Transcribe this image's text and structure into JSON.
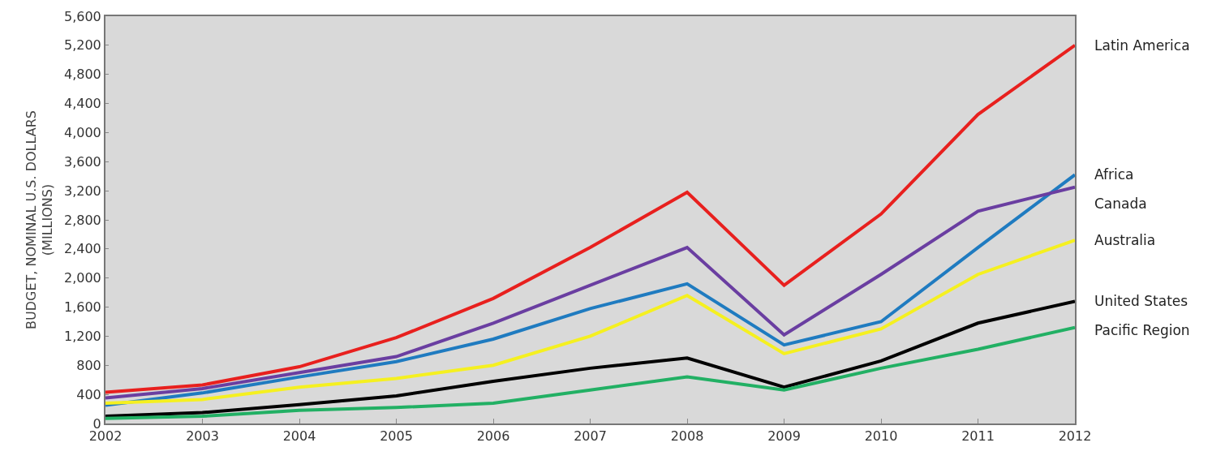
{
  "chart_data": {
    "type": "line",
    "ylabel": "BUDGET, NOMINAL U.S. DOLLARS\n(MILLIONS)",
    "x": [
      2002,
      2003,
      2004,
      2005,
      2006,
      2007,
      2008,
      2009,
      2010,
      2011,
      2012
    ],
    "xlim": [
      2002,
      2012
    ],
    "xticks": [
      2002,
      2003,
      2004,
      2005,
      2006,
      2007,
      2008,
      2009,
      2010,
      2011,
      2012
    ],
    "ylim": [
      0,
      5600
    ],
    "yticks": [
      {
        "value": 0,
        "label": "0"
      },
      {
        "value": 400,
        "label": "400"
      },
      {
        "value": 800,
        "label": "800"
      },
      {
        "value": 1200,
        "label": "1,200"
      },
      {
        "value": 1600,
        "label": "1,600"
      },
      {
        "value": 2000,
        "label": "2,000"
      },
      {
        "value": 2400,
        "label": "2,400"
      },
      {
        "value": 2800,
        "label": "2,800"
      },
      {
        "value": 3200,
        "label": "3,200"
      },
      {
        "value": 3600,
        "label": "3,600"
      },
      {
        "value": 4000,
        "label": "4,000"
      },
      {
        "value": 4400,
        "label": "4,400"
      },
      {
        "value": 4800,
        "label": "4,800"
      },
      {
        "value": 5200,
        "label": "5,200"
      },
      {
        "value": 5600,
        "label": "5,600"
      }
    ],
    "grid": false,
    "legend": false,
    "marker": "none",
    "line_style": "solid",
    "series": [
      {
        "name": "Latin America",
        "color": "#e8201e",
        "values": [
          430,
          530,
          780,
          1180,
          1720,
          2420,
          3180,
          1900,
          2880,
          4250,
          5200
        ]
      },
      {
        "name": "Africa",
        "color": "#1f7bc0",
        "values": [
          250,
          420,
          640,
          850,
          1160,
          1580,
          1920,
          1080,
          1400,
          2420,
          3420
        ]
      },
      {
        "name": "Canada",
        "color": "#6a3ea1",
        "values": [
          350,
          480,
          700,
          920,
          1380,
          1900,
          2420,
          1220,
          2050,
          2920,
          3250
        ]
      },
      {
        "name": "Australia",
        "color": "#f5f020",
        "values": [
          280,
          330,
          500,
          620,
          800,
          1200,
          1760,
          960,
          1300,
          2050,
          2520
        ]
      },
      {
        "name": "United States",
        "color": "#000000",
        "values": [
          100,
          150,
          260,
          380,
          580,
          760,
          900,
          500,
          860,
          1380,
          1680
        ]
      },
      {
        "name": "Pacific Region",
        "color": "#22b064",
        "values": [
          70,
          100,
          180,
          220,
          280,
          460,
          640,
          460,
          760,
          1020,
          1320
        ]
      }
    ]
  }
}
